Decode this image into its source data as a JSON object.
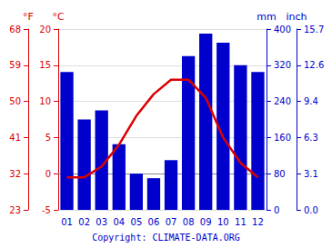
{
  "chart_data": {
    "type": "bar",
    "categories": [
      "01",
      "02",
      "03",
      "04",
      "05",
      "06",
      "07",
      "08",
      "09",
      "10",
      "11",
      "12"
    ],
    "series": [
      {
        "type": "bar",
        "axis": "y2",
        "color": "#0000cc",
        "values": [
          305,
          200,
          220,
          145,
          80,
          70,
          110,
          340,
          390,
          370,
          320,
          305
        ]
      },
      {
        "type": "line",
        "color": "#dd0000",
        "values": [
          -0.5,
          -0.5,
          1.0,
          4.0,
          8.0,
          11.0,
          13.0,
          13.0,
          10.5,
          5.0,
          1.5,
          -0.5
        ]
      }
    ],
    "ylabel": "°C",
    "ylim": [
      -5,
      20
    ],
    "yticks": [
      -5,
      0,
      5,
      10,
      15,
      20
    ],
    "y2label": "mm",
    "y2lim": [
      0,
      400
    ],
    "y2ticks": [
      0,
      80,
      160,
      240,
      320,
      400
    ],
    "y3label": "°F",
    "y3lim": [
      -5,
      20
    ],
    "y3ticks": [
      {
        "value": -5,
        "label": "23"
      },
      {
        "value": 0,
        "label": "32"
      },
      {
        "value": 5,
        "label": "41"
      },
      {
        "value": 10,
        "label": "50"
      },
      {
        "value": 15,
        "label": "59"
      },
      {
        "value": 20,
        "label": "68"
      }
    ],
    "y4label": "inch",
    "y4lim": [
      0,
      400
    ],
    "y4ticks": [
      {
        "value": 0,
        "label": "0.0"
      },
      {
        "value": 80,
        "label": "3.1"
      },
      {
        "value": 160,
        "label": "6.3"
      },
      {
        "value": 240,
        "label": "9.4"
      },
      {
        "value": 320,
        "label": "12.6"
      },
      {
        "value": 400,
        "label": "15.7"
      }
    ],
    "annotation": "Copyright: CLIMATE-DATA.ORG",
    "grid": true
  }
}
